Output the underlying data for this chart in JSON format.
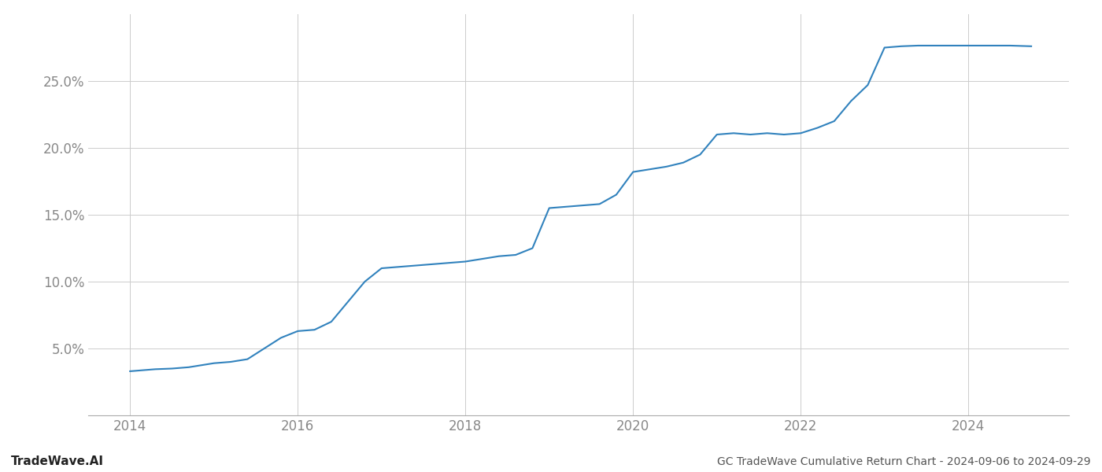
{
  "title": "GC TradeWave Cumulative Return Chart - 2024-09-06 to 2024-09-29",
  "watermark": "TradeWave.AI",
  "line_color": "#3182bd",
  "line_width": 1.5,
  "background_color": "#ffffff",
  "grid_color": "#cccccc",
  "x_years": [
    2014.0,
    2014.1,
    2014.2,
    2014.3,
    2014.5,
    2014.7,
    2014.9,
    2015.0,
    2015.2,
    2015.4,
    2015.6,
    2015.8,
    2016.0,
    2016.2,
    2016.4,
    2016.6,
    2016.8,
    2017.0,
    2017.2,
    2017.4,
    2017.6,
    2017.8,
    2018.0,
    2018.2,
    2018.4,
    2018.6,
    2018.8,
    2019.0,
    2019.2,
    2019.4,
    2019.6,
    2019.8,
    2020.0,
    2020.2,
    2020.4,
    2020.6,
    2020.8,
    2021.0,
    2021.2,
    2021.4,
    2021.6,
    2021.8,
    2022.0,
    2022.2,
    2022.4,
    2022.6,
    2022.8,
    2023.0,
    2023.2,
    2023.4,
    2023.6,
    2023.8,
    2024.0,
    2024.5,
    2024.75
  ],
  "y_values": [
    3.3,
    3.35,
    3.4,
    3.45,
    3.5,
    3.6,
    3.8,
    3.9,
    4.0,
    4.2,
    5.0,
    5.8,
    6.3,
    6.4,
    7.0,
    8.5,
    10.0,
    11.0,
    11.1,
    11.2,
    11.3,
    11.4,
    11.5,
    11.7,
    11.9,
    12.0,
    12.5,
    15.5,
    15.6,
    15.7,
    15.8,
    16.5,
    18.2,
    18.4,
    18.6,
    18.9,
    19.5,
    21.0,
    21.1,
    21.0,
    21.1,
    21.0,
    21.1,
    21.5,
    22.0,
    23.5,
    24.7,
    27.5,
    27.6,
    27.65,
    27.65,
    27.65,
    27.65,
    27.65,
    27.6
  ],
  "xlim": [
    2013.5,
    2025.2
  ],
  "ylim": [
    0.0,
    30.0
  ],
  "yticks": [
    5.0,
    10.0,
    15.0,
    20.0,
    25.0
  ],
  "xticks": [
    2014,
    2016,
    2018,
    2020,
    2022,
    2024
  ],
  "tick_label_color": "#888888",
  "title_fontsize": 10,
  "watermark_fontsize": 11,
  "tick_fontsize": 12
}
